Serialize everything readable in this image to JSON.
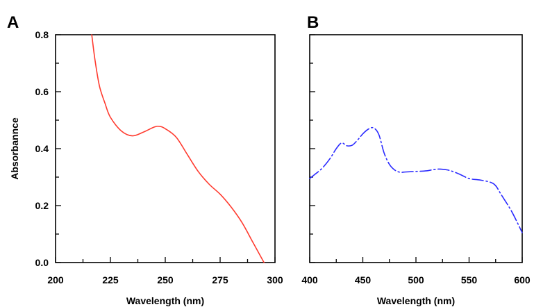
{
  "chart_data": [
    {
      "panel": "A",
      "type": "line",
      "xlabel": "Wavelength (nm)",
      "ylabel": "Absorbannce",
      "xlim": [
        200,
        300
      ],
      "ylim": [
        0,
        0.8
      ],
      "xticks": [
        200,
        225,
        250,
        275,
        300
      ],
      "yticks": [
        0.0,
        0.2,
        0.4,
        0.6,
        0.8
      ],
      "xtick_labels": [
        "200",
        "225",
        "250",
        "275",
        "300"
      ],
      "ytick_labels": [
        "0.0",
        "0.2",
        "0.4",
        "0.6",
        "0.8"
      ],
      "grid": false,
      "series": [
        {
          "color": "#ff3b2f",
          "style": "solid",
          "x": [
            216.5,
            218,
            220,
            222.5,
            225,
            230,
            235,
            240,
            245,
            247.5,
            250,
            255,
            260,
            265,
            270,
            275,
            280,
            285,
            290,
            295
          ],
          "y": [
            0.8,
            0.71,
            0.62,
            0.56,
            0.51,
            0.462,
            0.445,
            0.458,
            0.476,
            0.478,
            0.47,
            0.44,
            0.38,
            0.32,
            0.275,
            0.24,
            0.195,
            0.14,
            0.07,
            0.0
          ]
        }
      ]
    },
    {
      "panel": "B",
      "type": "line",
      "xlabel": "Wavelength (nm)",
      "ylabel": "",
      "xlim": [
        400,
        600
      ],
      "ylim": [
        0,
        0.8
      ],
      "xticks": [
        400,
        450,
        500,
        550,
        600
      ],
      "yticks": [
        0.0,
        0.2,
        0.4,
        0.6,
        0.8
      ],
      "xtick_labels": [
        "400",
        "450",
        "500",
        "550",
        "600"
      ],
      "ytick_labels": [],
      "grid": false,
      "series": [
        {
          "color": "#2b2bff",
          "style": "dash-dot",
          "x": [
            400,
            405,
            410,
            415,
            420,
            425,
            430,
            435,
            440,
            445,
            450,
            455,
            460,
            465,
            470,
            475,
            480,
            485,
            490,
            500,
            510,
            520,
            530,
            540,
            550,
            560,
            570,
            575,
            580,
            590,
            600
          ],
          "y": [
            0.295,
            0.31,
            0.325,
            0.345,
            0.37,
            0.4,
            0.42,
            0.41,
            0.412,
            0.43,
            0.452,
            0.468,
            0.473,
            0.45,
            0.385,
            0.345,
            0.325,
            0.317,
            0.318,
            0.32,
            0.322,
            0.328,
            0.325,
            0.312,
            0.295,
            0.29,
            0.282,
            0.27,
            0.24,
            0.18,
            0.105
          ]
        }
      ]
    }
  ]
}
